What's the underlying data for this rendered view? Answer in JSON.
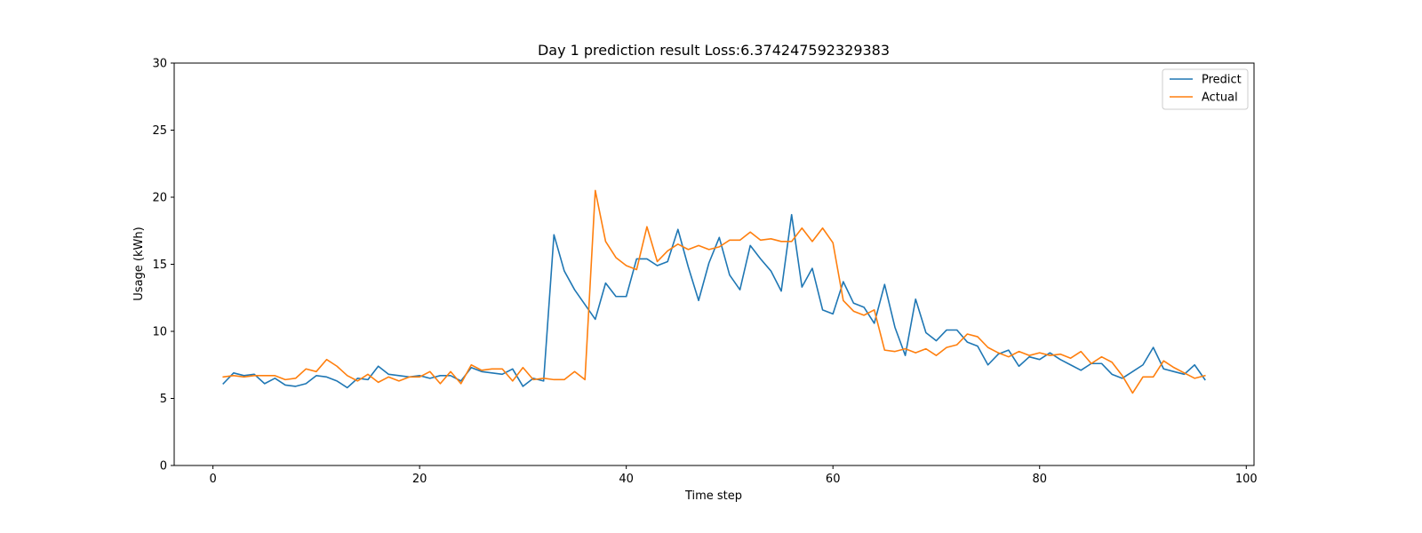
{
  "chart_data": {
    "type": "line",
    "title": "Day 1 prediction result Loss:6.374247592329383",
    "xlabel": "Time step",
    "ylabel": "Usage (kWh)",
    "xlim": [
      -3.75,
      100.75
    ],
    "ylim": [
      0,
      30
    ],
    "xticks": [
      0,
      20,
      40,
      60,
      80,
      100
    ],
    "yticks": [
      0,
      5,
      10,
      15,
      20,
      25,
      30
    ],
    "grid": false,
    "legend_position": "top-right",
    "x": [
      1,
      2,
      3,
      4,
      5,
      6,
      7,
      8,
      9,
      10,
      11,
      12,
      13,
      14,
      15,
      16,
      17,
      18,
      19,
      20,
      21,
      22,
      23,
      24,
      25,
      26,
      27,
      28,
      29,
      30,
      31,
      32,
      33,
      34,
      35,
      36,
      37,
      38,
      39,
      40,
      41,
      42,
      43,
      44,
      45,
      46,
      47,
      48,
      49,
      50,
      51,
      52,
      53,
      54,
      55,
      56,
      57,
      58,
      59,
      60,
      61,
      62,
      63,
      64,
      65,
      66,
      67,
      68,
      69,
      70,
      71,
      72,
      73,
      74,
      75,
      76,
      77,
      78,
      79,
      80,
      81,
      82,
      83,
      84,
      85,
      86,
      87,
      88,
      89,
      90,
      91,
      92,
      93,
      94,
      95,
      96
    ],
    "series": [
      {
        "name": "Predict",
        "color": "#1f77b4",
        "values": [
          6.1,
          6.9,
          6.7,
          6.8,
          6.1,
          6.5,
          6.0,
          5.9,
          6.1,
          6.7,
          6.6,
          6.3,
          5.8,
          6.5,
          6.4,
          7.4,
          6.8,
          6.7,
          6.6,
          6.7,
          6.5,
          6.7,
          6.7,
          6.3,
          7.3,
          7.0,
          6.9,
          6.8,
          7.2,
          5.9,
          6.5,
          6.3,
          17.2,
          14.5,
          13.1,
          12.0,
          10.9,
          13.6,
          12.6,
          12.6,
          15.4,
          15.4,
          14.9,
          15.2,
          17.6,
          14.8,
          12.3,
          15.1,
          17.0,
          14.2,
          13.1,
          16.4,
          15.4,
          14.5,
          13.0,
          18.7,
          13.3,
          14.7,
          11.6,
          11.3,
          13.7,
          12.1,
          11.8,
          10.6,
          13.5,
          10.3,
          8.2,
          12.4,
          9.9,
          9.3,
          10.1,
          10.1,
          9.2,
          8.9,
          7.5,
          8.3,
          8.6,
          7.4,
          8.1,
          7.9,
          8.4,
          7.9,
          7.5,
          7.1,
          7.6,
          7.6,
          6.8,
          6.5,
          7.0,
          7.5,
          8.8,
          7.2,
          7.0,
          6.8,
          7.5,
          6.4
        ]
      },
      {
        "name": "Actual",
        "color": "#ff7f0e",
        "values": [
          6.6,
          6.7,
          6.6,
          6.7,
          6.7,
          6.7,
          6.4,
          6.5,
          7.2,
          7.0,
          7.9,
          7.4,
          6.7,
          6.3,
          6.8,
          6.2,
          6.6,
          6.3,
          6.6,
          6.6,
          7.0,
          6.1,
          7.0,
          6.1,
          7.5,
          7.1,
          7.2,
          7.2,
          6.3,
          7.3,
          6.4,
          6.5,
          6.4,
          6.4,
          7.0,
          6.4,
          20.5,
          16.7,
          15.5,
          14.9,
          14.6,
          17.8,
          15.2,
          16.0,
          16.5,
          16.1,
          16.4,
          16.1,
          16.3,
          16.8,
          16.8,
          17.4,
          16.8,
          16.9,
          16.7,
          16.7,
          17.7,
          16.7,
          17.7,
          16.6,
          12.3,
          11.5,
          11.2,
          11.6,
          8.6,
          8.5,
          8.7,
          8.4,
          8.7,
          8.2,
          8.8,
          9.0,
          9.8,
          9.6,
          8.8,
          8.4,
          8.1,
          8.5,
          8.2,
          8.4,
          8.2,
          8.3,
          8.0,
          8.5,
          7.6,
          8.1,
          7.7,
          6.7,
          5.4,
          6.6,
          6.6,
          7.8,
          7.3,
          6.9,
          6.5,
          6.7
        ]
      }
    ]
  }
}
